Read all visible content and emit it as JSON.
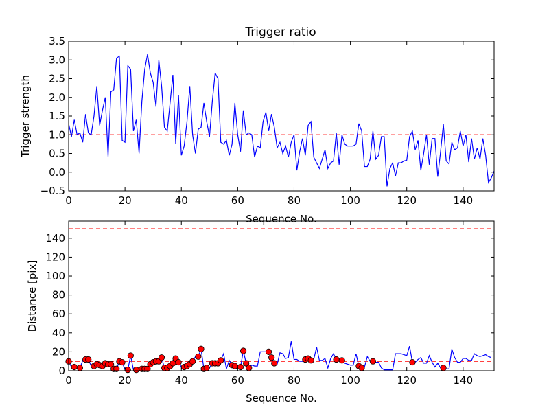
{
  "chart_data": [
    {
      "type": "line",
      "title": "Trigger ratio",
      "xlabel": "Sequence No.",
      "ylabel": "Trigger strength",
      "xlim": [
        0,
        151
      ],
      "ylim": [
        -0.5,
        3.5
      ],
      "xticks": [
        0,
        20,
        40,
        60,
        80,
        100,
        120,
        140
      ],
      "yticks": [
        -0.5,
        0.0,
        0.5,
        1.0,
        1.5,
        2.0,
        2.5,
        3.0,
        3.5
      ],
      "ytick_labels": [
        "−0.5",
        "0.0",
        "0.5",
        "1.0",
        "1.5",
        "2.0",
        "2.5",
        "3.0",
        "3.5"
      ],
      "threshold": 1.0,
      "colors": {
        "line": "#0000ff",
        "threshold": "#ff0000"
      },
      "series": [
        {
          "name": "Trigger strength",
          "values": [
            1.3,
            0.95,
            1.4,
            1.0,
            1.05,
            0.8,
            1.55,
            1.05,
            1.0,
            1.5,
            2.3,
            1.25,
            1.65,
            2.0,
            0.42,
            2.15,
            2.2,
            3.05,
            3.1,
            0.85,
            0.8,
            2.85,
            2.75,
            1.1,
            1.4,
            0.5,
            1.9,
            2.75,
            3.15,
            2.65,
            2.4,
            1.75,
            3.0,
            2.3,
            1.2,
            1.1,
            1.85,
            2.6,
            0.75,
            2.05,
            0.45,
            0.7,
            1.35,
            2.3,
            1.0,
            0.5,
            1.15,
            1.2,
            1.85,
            1.35,
            0.95,
            1.9,
            2.65,
            2.5,
            0.8,
            0.75,
            0.85,
            0.45,
            0.75,
            1.85,
            1.0,
            0.55,
            1.65,
            1.0,
            1.05,
            1.0,
            0.4,
            0.7,
            0.65,
            1.35,
            1.6,
            1.1,
            1.55,
            1.2,
            0.65,
            0.8,
            0.5,
            0.7,
            0.4,
            0.8,
            1.0,
            0.05,
            0.55,
            0.9,
            0.45,
            1.25,
            1.35,
            0.4,
            0.25,
            0.1,
            0.35,
            0.6,
            0.1,
            0.25,
            0.3,
            1.05,
            0.2,
            1.0,
            0.75,
            0.7,
            0.7,
            0.7,
            0.75,
            1.3,
            1.1,
            0.15,
            0.15,
            0.35,
            1.1,
            0.35,
            0.45,
            0.95,
            0.95,
            -0.38,
            0.1,
            0.25,
            -0.1,
            0.25,
            0.25,
            0.3,
            0.32,
            0.95,
            1.1,
            0.6,
            0.85,
            0.05,
            0.5,
            1.0,
            0.2,
            0.9,
            0.9,
            -0.12,
            0.55,
            1.28,
            0.3,
            0.22,
            0.8,
            0.6,
            0.65,
            1.1,
            0.7,
            1.0,
            0.27,
            0.9,
            0.35,
            0.65,
            0.35,
            0.9,
            0.45,
            -0.28,
            -0.15,
            0.03
          ]
        }
      ]
    },
    {
      "type": "line",
      "title": "",
      "xlabel": "Sequence No.",
      "ylabel": "Distance [pix]",
      "xlim": [
        0,
        151
      ],
      "ylim": [
        0,
        158
      ],
      "xticks": [
        0,
        20,
        40,
        60,
        80,
        100,
        120,
        140
      ],
      "yticks": [
        0,
        20,
        40,
        60,
        80,
        100,
        120,
        140
      ],
      "threshold_low": 10,
      "threshold_high": 150,
      "colors": {
        "line": "#0000ff",
        "threshold": "#ff0000",
        "marker": "#ff0000"
      },
      "series": [
        {
          "name": "Distance",
          "values": [
            10,
            4,
            4,
            3,
            3,
            11,
            12,
            12,
            5,
            5,
            7,
            6,
            5,
            8,
            7,
            7,
            2,
            2,
            10,
            9,
            1,
            1,
            16,
            1,
            1,
            1,
            2,
            2,
            2,
            7,
            9,
            10,
            10,
            14,
            3,
            3,
            5,
            8,
            13,
            9,
            4,
            4,
            5,
            7,
            10,
            15,
            15,
            23,
            2,
            3,
            3,
            8,
            8,
            8,
            11,
            18,
            2,
            11,
            6,
            5,
            4,
            4,
            21,
            8,
            3,
            6,
            5,
            5,
            20,
            20,
            20,
            20,
            14,
            8,
            7,
            19,
            18,
            13,
            14,
            31,
            12,
            12,
            10,
            10,
            12,
            13,
            11,
            12,
            25,
            11,
            11,
            13,
            3,
            13,
            18,
            12,
            11,
            11,
            8,
            7,
            6,
            6,
            18,
            5,
            3,
            4,
            15,
            10,
            10,
            9,
            9,
            3,
            1,
            1,
            1,
            1,
            18,
            18,
            18,
            17,
            16,
            26,
            9,
            9,
            12,
            14,
            8,
            8,
            16,
            9,
            4,
            8,
            3,
            3,
            2,
            2,
            23,
            14,
            9,
            9,
            13,
            13,
            11,
            11,
            18,
            16,
            15,
            16,
            17,
            15,
            14
          ],
          "marker_indices": [
            0,
            2,
            4,
            6,
            7,
            9,
            10,
            11,
            12,
            13,
            14,
            15,
            16,
            17,
            18,
            19,
            21,
            22,
            24,
            26,
            27,
            28,
            29,
            30,
            31,
            32,
            33,
            34,
            35,
            36,
            37,
            38,
            39,
            41,
            42,
            43,
            44,
            46,
            47,
            48,
            49,
            51,
            52,
            53,
            54,
            58,
            59,
            61,
            62,
            63,
            64,
            71,
            72,
            73,
            84,
            85,
            86,
            95,
            97,
            103,
            104,
            108,
            122,
            133
          ]
        }
      ]
    }
  ]
}
